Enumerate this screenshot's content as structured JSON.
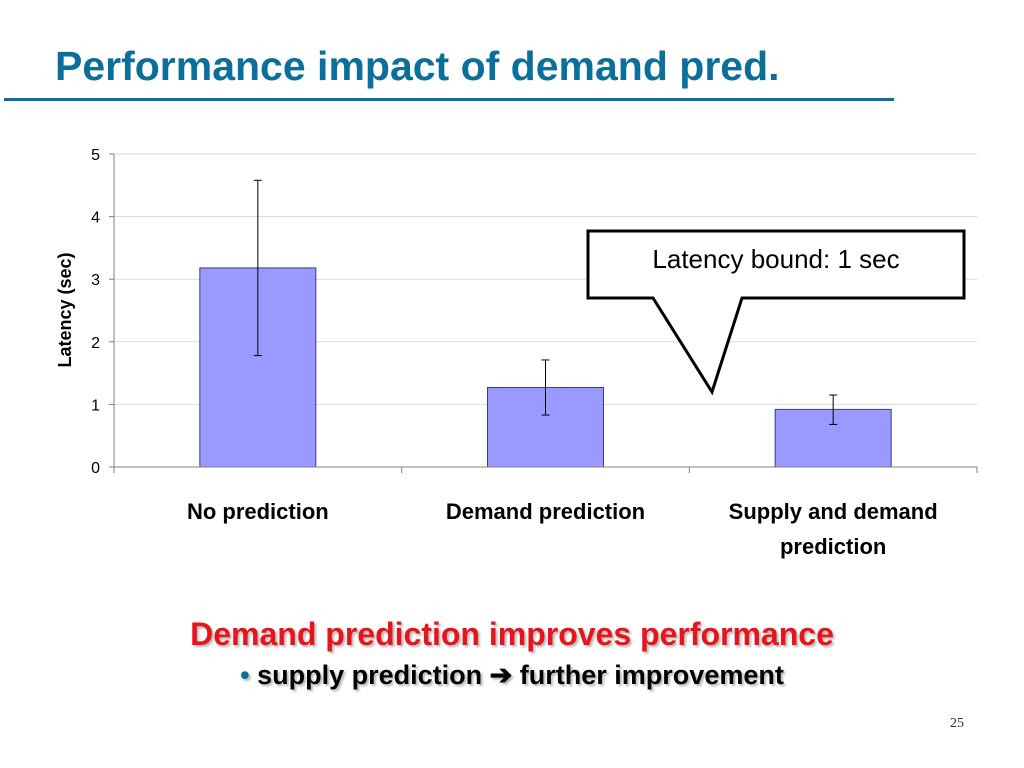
{
  "slide": {
    "title": "Performance impact of demand pred.",
    "headline": "Demand prediction improves performance",
    "bullet_symbol": "•",
    "bullet_text_before_arrow": "supply prediction",
    "arrow_symbol": "➔",
    "bullet_text_after_arrow": "further improvement",
    "page_number": "25",
    "colors": {
      "title": "#0b6f9b",
      "headline": "#e8141b",
      "bar_fill": "#9999ff",
      "bar_stroke": "#3a3a8c",
      "gridline": "#d9d9d9"
    }
  },
  "chart_data": {
    "type": "bar",
    "title": "",
    "xlabel": "",
    "ylabel": "Latency (sec)",
    "ylim": [
      0,
      5
    ],
    "yticks": [
      0,
      1,
      2,
      3,
      4,
      5
    ],
    "grid": true,
    "categories": [
      [
        "No prediction"
      ],
      [
        "Demand prediction"
      ],
      [
        "Supply and demand",
        "prediction"
      ]
    ],
    "values": [
      3.18,
      1.27,
      0.92
    ],
    "error_low": [
      1.78,
      0.83,
      0.68
    ],
    "error_high": [
      4.58,
      1.71,
      1.15
    ],
    "annotation": {
      "text": "Latency bound: 1 sec",
      "points_to_category": 2
    }
  }
}
